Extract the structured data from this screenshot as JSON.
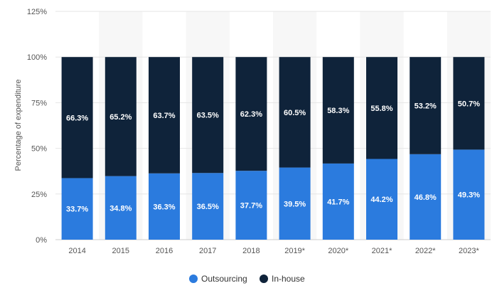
{
  "chart_data": {
    "type": "bar",
    "stacked": true,
    "title": "",
    "xlabel": "",
    "ylabel": "Percentage of expenditure",
    "ylim": [
      0,
      125
    ],
    "yticks": [
      "0%",
      "25%",
      "50%",
      "75%",
      "100%",
      "125%"
    ],
    "grid": true,
    "legend_position": "bottom-center",
    "categories": [
      "2014",
      "2015",
      "2016",
      "2017",
      "2018",
      "2019*",
      "2020*",
      "2021*",
      "2022*",
      "2023*"
    ],
    "series": [
      {
        "name": "Outsourcing",
        "color": "#2b7bde",
        "values": [
          33.7,
          34.8,
          36.3,
          36.5,
          37.7,
          39.5,
          41.7,
          44.2,
          46.8,
          49.3
        ],
        "labels": [
          "33.7%",
          "34.8%",
          "36.3%",
          "36.5%",
          "37.7%",
          "39.5%",
          "41.7%",
          "44.2%",
          "46.8%",
          "49.3%"
        ]
      },
      {
        "name": "In-house",
        "color": "#0f233a",
        "values": [
          66.3,
          65.2,
          63.7,
          63.5,
          62.3,
          60.5,
          58.3,
          55.8,
          53.2,
          50.7
        ],
        "labels": [
          "66.3%",
          "65.2%",
          "63.7%",
          "63.5%",
          "62.3%",
          "60.5%",
          "58.3%",
          "55.8%",
          "53.2%",
          "50.7%"
        ]
      }
    ]
  }
}
